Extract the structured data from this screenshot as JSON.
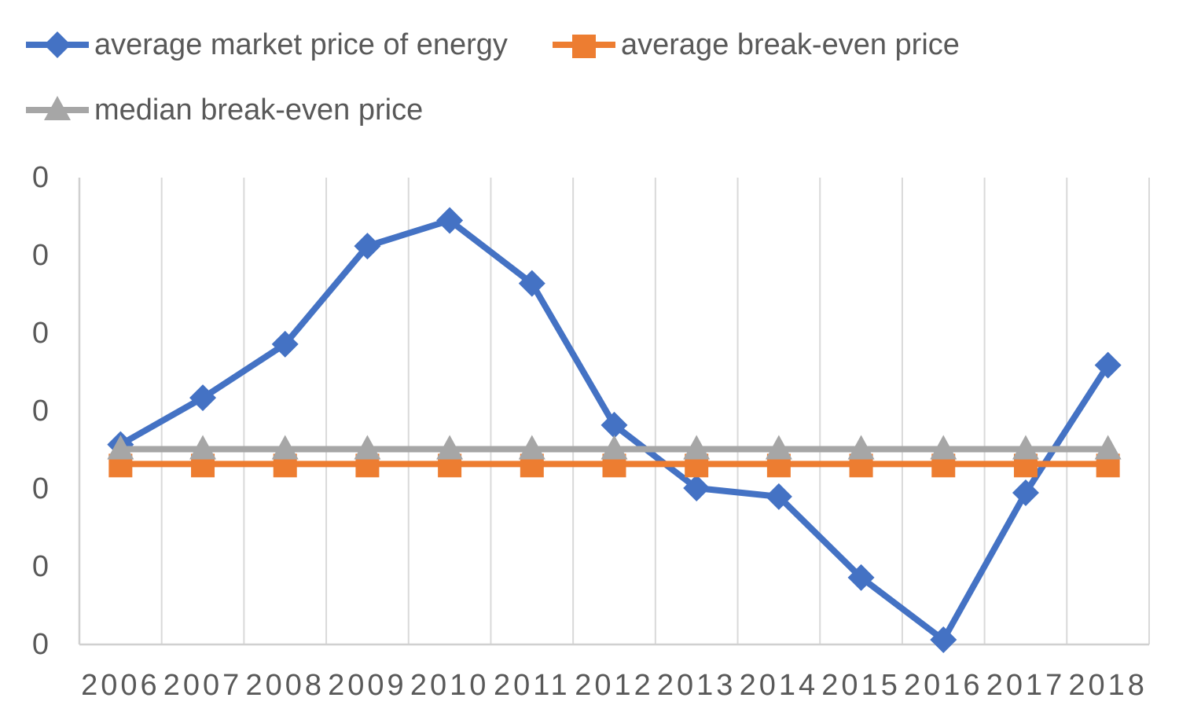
{
  "page": {
    "background": "#ffffff"
  },
  "legend": {
    "text_color": "#595959",
    "items": [
      {
        "label": "average market price of energy",
        "color": "#4472C4",
        "marker": "diamond"
      },
      {
        "label": "average break-even price",
        "color": "#ED7D31",
        "marker": "square"
      },
      {
        "label": "median break-even price",
        "color": "#A6A6A6",
        "marker": "triangle"
      }
    ]
  },
  "chart_data": {
    "type": "line",
    "title": "",
    "categories": [
      "2006",
      "2007",
      "2008",
      "2009",
      "2010",
      "2011",
      "2012",
      "2013",
      "2014",
      "2015",
      "2016",
      "2017",
      "2018"
    ],
    "series": [
      {
        "name": "average market price of energy",
        "color": "#4472C4",
        "marker": "diamond",
        "values": [
          2.57,
          3.17,
          3.86,
          5.12,
          5.45,
          4.64,
          2.82,
          2.01,
          1.9,
          0.86,
          0.06,
          1.95,
          3.59
        ]
      },
      {
        "name": "average break-even price",
        "color": "#ED7D31",
        "marker": "square",
        "values": [
          2.32,
          2.32,
          2.32,
          2.32,
          2.32,
          2.32,
          2.32,
          2.32,
          2.32,
          2.32,
          2.32,
          2.32,
          2.32
        ]
      },
      {
        "name": "median break-even price",
        "color": "#A6A6A6",
        "marker": "triangle",
        "values": [
          2.51,
          2.51,
          2.51,
          2.51,
          2.51,
          2.51,
          2.51,
          2.51,
          2.51,
          2.51,
          2.51,
          2.51,
          2.51
        ]
      }
    ],
    "x_axis": {
      "tick_labels": [
        "2006",
        "2007",
        "2008",
        "2009",
        "2010",
        "2011",
        "2012",
        "2013",
        "2014",
        "2015",
        "2016",
        "2017",
        "2018"
      ],
      "text_color": "#595959"
    },
    "y_axis": {
      "tick_labels": [
        "0",
        "0",
        "0",
        "0",
        "0",
        "0",
        "0"
      ],
      "min": 0,
      "max": 6,
      "units": "gridline units (axis labels truncated to 0 in image)",
      "text_color": "#595959"
    },
    "grid": {
      "vertical": true,
      "horizontal": false,
      "color": "#D9D9D9",
      "axis_color": "#D0D0D0"
    },
    "legend_position": "top-left"
  }
}
